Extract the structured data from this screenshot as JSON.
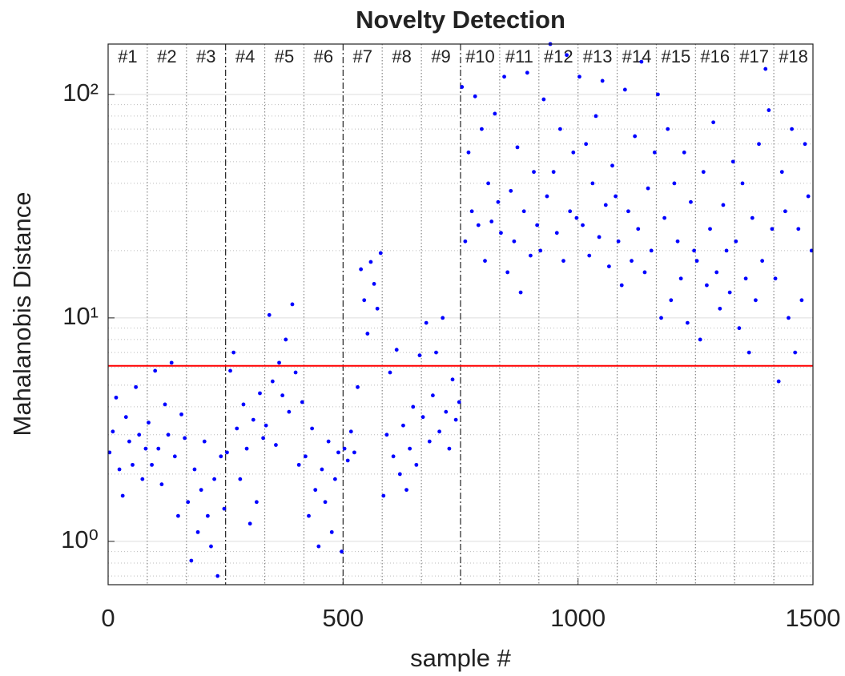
{
  "chart_data": {
    "type": "scatter",
    "title": "Novelty Detection",
    "x_label": "sample #",
    "y_label": "Mahalanobis Distance",
    "log_y": true,
    "grid": true,
    "minor_grid": true,
    "color": "#0000ff",
    "xlim": [
      0,
      1500
    ],
    "xticks": [
      0,
      500,
      1000,
      1500
    ],
    "ylim": [
      0.64,
      168
    ],
    "yticks": [
      {
        "value": 1,
        "label": "10⁰"
      },
      {
        "value": 10,
        "label": "10¹"
      },
      {
        "value": 100,
        "label": "10²"
      }
    ],
    "threshold": {
      "value": 6.1,
      "color": "#ff0000"
    },
    "segments": [
      "#1",
      "#2",
      "#3",
      "#4",
      "#5",
      "#6",
      "#7",
      "#8",
      "#9",
      "#10",
      "#11",
      "#12",
      "#13",
      "#14",
      "#15",
      "#16",
      "#17",
      "#18"
    ],
    "boundaries": [
      {
        "value": 83.3,
        "style": "dotted"
      },
      {
        "value": 166.7,
        "style": "dotted"
      },
      {
        "value": 250,
        "style": "dashdot"
      },
      {
        "value": 333.3,
        "style": "dotted"
      },
      {
        "value": 416.7,
        "style": "dotted"
      },
      {
        "value": 500,
        "style": "dashdot"
      },
      {
        "value": 583.3,
        "style": "dotted"
      },
      {
        "value": 666.7,
        "style": "dotted"
      },
      {
        "value": 750,
        "style": "dashdot"
      },
      {
        "value": 833.3,
        "style": "dotted"
      },
      {
        "value": 916.7,
        "style": "dotted"
      },
      {
        "value": 1000,
        "style": "dotted"
      },
      {
        "value": 1083.3,
        "style": "dotted"
      },
      {
        "value": 1166.7,
        "style": "dotted"
      },
      {
        "value": 1250,
        "style": "dotted"
      },
      {
        "value": 1333.3,
        "style": "dotted"
      },
      {
        "value": 1416.7,
        "style": "dotted"
      }
    ],
    "x": [
      3,
      10,
      17,
      24,
      31,
      38,
      45,
      52,
      59,
      66,
      73,
      80,
      86,
      93,
      100,
      107,
      114,
      121,
      128,
      135,
      142,
      149,
      156,
      163,
      170,
      177,
      184,
      191,
      198,
      205,
      212,
      219,
      226,
      233,
      240,
      247,
      253,
      260,
      267,
      274,
      281,
      288,
      295,
      302,
      309,
      316,
      323,
      330,
      336,
      343,
      350,
      357,
      364,
      371,
      378,
      385,
      392,
      399,
      406,
      413,
      420,
      427,
      434,
      441,
      448,
      455,
      462,
      469,
      476,
      483,
      490,
      497,
      503,
      510,
      517,
      524,
      531,
      538,
      545,
      552,
      559,
      566,
      573,
      580,
      586,
      593,
      600,
      607,
      614,
      621,
      628,
      635,
      642,
      649,
      656,
      663,
      670,
      677,
      684,
      691,
      698,
      705,
      712,
      719,
      726,
      733,
      740,
      747,
      753,
      760,
      767,
      774,
      781,
      788,
      795,
      802,
      809,
      816,
      823,
      830,
      836,
      843,
      850,
      857,
      864,
      871,
      878,
      885,
      892,
      899,
      906,
      913,
      920,
      927,
      934,
      941,
      948,
      955,
      962,
      969,
      976,
      983,
      990,
      997,
      1003,
      1010,
      1017,
      1024,
      1031,
      1038,
      1045,
      1052,
      1059,
      1066,
      1073,
      1080,
      1086,
      1093,
      1100,
      1107,
      1114,
      1121,
      1128,
      1135,
      1142,
      1149,
      1156,
      1163,
      1170,
      1177,
      1184,
      1191,
      1198,
      1205,
      1212,
      1219,
      1226,
      1233,
      1240,
      1247,
      1253,
      1260,
      1267,
      1274,
      1281,
      1288,
      1295,
      1302,
      1309,
      1316,
      1323,
      1330,
      1336,
      1343,
      1350,
      1357,
      1364,
      1371,
      1378,
      1385,
      1392,
      1399,
      1406,
      1413,
      1420,
      1427,
      1434,
      1441,
      1448,
      1455,
      1462,
      1469,
      1476,
      1483,
      1490,
      1497
    ],
    "values": [
      2.5,
      3.1,
      4.4,
      2.1,
      1.6,
      3.6,
      2.8,
      2.2,
      4.9,
      3.0,
      1.9,
      2.6,
      3.4,
      2.2,
      5.8,
      2.6,
      1.8,
      4.1,
      3.0,
      6.3,
      2.4,
      1.3,
      3.7,
      2.9,
      1.5,
      0.82,
      2.1,
      1.1,
      1.7,
      2.8,
      1.3,
      0.95,
      1.9,
      0.7,
      2.4,
      1.4,
      2.5,
      5.8,
      7.0,
      3.2,
      1.9,
      4.1,
      2.6,
      1.2,
      3.5,
      1.5,
      4.6,
      2.9,
      3.3,
      10.3,
      5.2,
      2.7,
      6.3,
      4.5,
      8.0,
      3.8,
      11.5,
      5.7,
      2.2,
      4.2,
      2.4,
      1.3,
      3.2,
      1.7,
      0.95,
      2.1,
      1.5,
      2.8,
      1.1,
      1.9,
      2.5,
      0.9,
      2.6,
      2.3,
      3.1,
      2.5,
      4.9,
      16.5,
      12.0,
      8.5,
      17.8,
      14.2,
      11.0,
      19.5,
      1.6,
      3.0,
      5.7,
      2.4,
      7.2,
      2.0,
      3.3,
      1.7,
      2.6,
      4.0,
      2.2,
      6.8,
      3.6,
      9.5,
      2.8,
      4.5,
      7.0,
      3.1,
      10.0,
      3.8,
      2.6,
      5.3,
      3.5,
      4.2,
      108,
      22,
      55,
      30,
      98,
      26,
      70,
      18,
      40,
      27,
      82,
      33,
      24,
      120,
      16,
      37,
      22,
      58,
      13,
      30,
      125,
      19,
      45,
      26,
      20,
      95,
      35,
      168,
      45,
      24,
      70,
      18,
      150,
      30,
      55,
      28,
      120,
      26,
      60,
      19,
      40,
      80,
      23,
      115,
      32,
      17,
      48,
      35,
      22,
      14,
      105,
      30,
      18,
      65,
      25,
      140,
      16,
      38,
      20,
      55,
      100,
      10,
      28,
      70,
      12,
      40,
      22,
      15,
      55,
      9.5,
      33,
      20,
      18,
      8,
      45,
      14,
      25,
      75,
      16,
      11,
      32,
      20,
      13,
      50,
      22,
      9,
      40,
      15,
      7,
      28,
      12,
      60,
      18,
      130,
      85,
      25,
      15,
      5.2,
      45,
      30,
      10,
      70,
      7,
      25,
      12,
      60,
      35,
      20
    ]
  }
}
